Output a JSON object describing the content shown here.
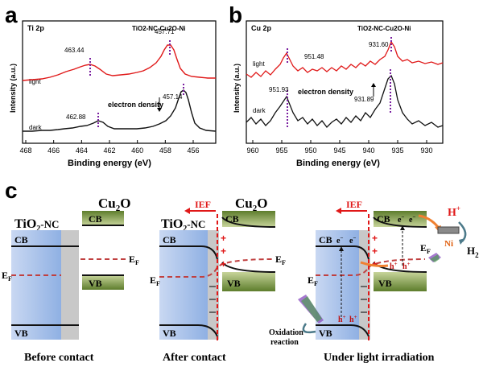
{
  "panel_a": {
    "letter": "a",
    "element": "Ti 2p",
    "sample": "TiO2-NC-Cu2O-Ni",
    "ylabel": "Intensity (a.u.)",
    "xlabel": "Binding energy (eV)",
    "xticks": [
      "468",
      "466",
      "464",
      "462",
      "460",
      "458",
      "456"
    ],
    "light_label": "light",
    "dark_label": "dark",
    "peak_light_1": "463.44",
    "peak_light_2": "457.71",
    "peak_dark_1": "462.88",
    "peak_dark_2": "457.14",
    "annotation": "electron density"
  },
  "panel_b": {
    "letter": "b",
    "element": "Cu 2p",
    "sample": "TiO2-NC-Cu2O-Ni",
    "ylabel": "Intensity (a.u.)",
    "xlabel": "Binding energy (eV)",
    "xticks": [
      "960",
      "955",
      "950",
      "945",
      "940",
      "935",
      "930"
    ],
    "light_label": "light",
    "dark_label": "dark",
    "peak_light_1": "951.48",
    "peak_light_2": "931.60",
    "peak_dark_1": "951.93",
    "peak_dark_2": "931.89",
    "annotation": "electron density"
  },
  "panel_c": {
    "letter": "c",
    "cu2o": "Cu2O",
    "tio2": "TiO2-NC",
    "cb": "CB",
    "vb": "VB",
    "ef": "EF",
    "ief": "IEF",
    "electron": "e-",
    "hole": "h+",
    "ni": "Ni",
    "hplus": "H+",
    "h2": "H2",
    "oxidation": "Oxidation reaction",
    "caption_before": "Before contact",
    "caption_after": "After contact",
    "caption_light": "Under light irradiation"
  },
  "colors": {
    "light_curve": "#e01818",
    "dark_curve": "#111111",
    "peak_marker": "#7a1fa0",
    "tio2_band": "#9db8e6",
    "cu2o_band": "#7a9a40",
    "ief": "#e01818"
  }
}
